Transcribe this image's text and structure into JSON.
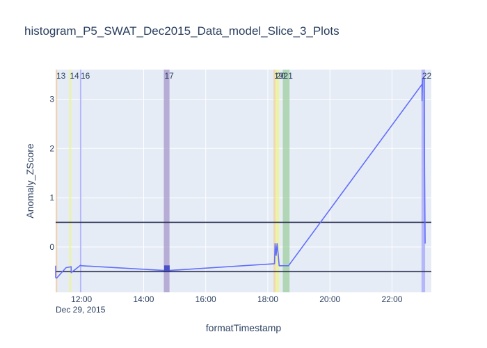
{
  "chart_data": {
    "type": "line",
    "title": "histogram_P5_SWAT_Dec2015_Data_model_Slice_3_Plots",
    "xlabel": "formatTimestamp",
    "ylabel": "Anomaly_ZScore",
    "x_date_label": "Dec 29, 2015",
    "xlim": [
      "2015-12-29T11:10",
      "2015-12-29T23:16"
    ],
    "ylim": [
      -0.92,
      3.6
    ],
    "x_ticks": [
      {
        "t": "2015-12-29T12:00",
        "label": "12:00"
      },
      {
        "t": "2015-12-29T14:00",
        "label": "14:00"
      },
      {
        "t": "2015-12-29T16:00",
        "label": "16:00"
      },
      {
        "t": "2015-12-29T18:00",
        "label": "18:00"
      },
      {
        "t": "2015-12-29T20:00",
        "label": "20:00"
      },
      {
        "t": "2015-12-29T22:00",
        "label": "22:00"
      }
    ],
    "y_ticks": [
      0,
      1,
      2,
      3
    ],
    "grid": true,
    "plot_bg": "#e5ecf6",
    "line_color": "#636efa",
    "threshold_color": "#2a3050",
    "thresholds": [
      0.5,
      -0.5
    ],
    "bands": [
      {
        "label": "13",
        "start": "2015-12-29T11:10",
        "end": "2015-12-29T11:13",
        "color": "#f5c99a"
      },
      {
        "label": "14",
        "start": "2015-12-29T11:36",
        "end": "2015-12-29T11:40",
        "color": "#eef58f"
      },
      {
        "label": "16",
        "start": "2015-12-29T11:57",
        "end": "2015-12-29T12:00",
        "color": "#a6a6fb"
      },
      {
        "label": "17",
        "start": "2015-12-29T14:39",
        "end": "2015-12-29T14:50",
        "color": "#a597c9"
      },
      {
        "label": "19",
        "start": "2015-12-29T18:11",
        "end": "2015-12-29T18:15",
        "color": "#f2d29e"
      },
      {
        "label": "20",
        "start": "2015-12-29T18:15",
        "end": "2015-12-29T18:22",
        "color": "#eef58f"
      },
      {
        "label": "21",
        "start": "2015-12-29T18:29",
        "end": "2015-12-29T18:42",
        "color": "#9fcf9f"
      },
      {
        "label": "22",
        "start": "2015-12-29T22:57",
        "end": "2015-12-29T23:04",
        "color": "#a6a6fb"
      }
    ],
    "series": [
      {
        "x": [
          "2015-12-29T11:10",
          "2015-12-29T11:10",
          "2015-12-29T11:12",
          "2015-12-29T11:30",
          "2015-12-29T11:40",
          "2015-12-29T11:40",
          "2015-12-29T11:58",
          "2015-12-29T12:00",
          "2015-12-29T14:45",
          "2015-12-29T18:13",
          "2015-12-29T18:14",
          "2015-12-29T18:16",
          "2015-12-29T18:18",
          "2015-12-29T18:20",
          "2015-12-29T18:22",
          "2015-12-29T18:40",
          "2015-12-29T22:58",
          "2015-12-29T22:58",
          "2015-12-29T22:59",
          "2015-12-29T23:02",
          "2015-12-29T23:03",
          "2015-12-29T23:04"
        ],
        "y": [
          -0.38,
          -0.62,
          -0.63,
          -0.42,
          -0.4,
          -0.52,
          -0.37,
          -0.38,
          -0.48,
          -0.34,
          0.07,
          -0.17,
          0.07,
          -0.14,
          -0.38,
          -0.38,
          3.3,
          2.97,
          3.42,
          3.42,
          1.5,
          0.07
        ]
      }
    ],
    "markers": [
      {
        "x": "2015-12-29T14:45",
        "y": -0.43,
        "color": "#4a50c8"
      }
    ]
  }
}
